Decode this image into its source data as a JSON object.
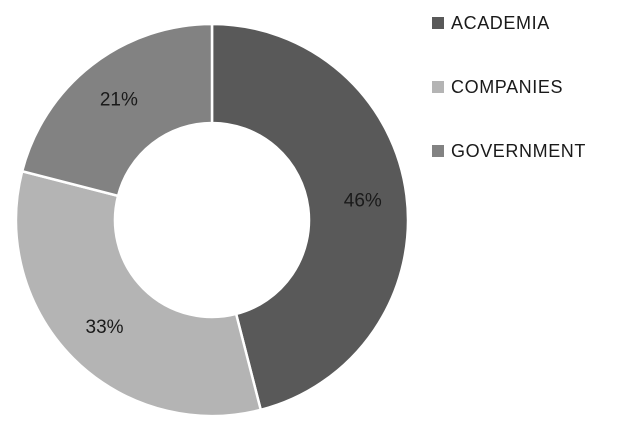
{
  "chart_data": {
    "type": "pie",
    "variant": "donut",
    "categories": [
      "ACADEMIA",
      "COMPANIES",
      "GOVERNMENT"
    ],
    "values": [
      46,
      33,
      21
    ],
    "labels": [
      "46%",
      "33%",
      "21%"
    ],
    "colors": [
      "#595959",
      "#b4b4b4",
      "#828282"
    ],
    "title": "",
    "legend_position": "right"
  }
}
